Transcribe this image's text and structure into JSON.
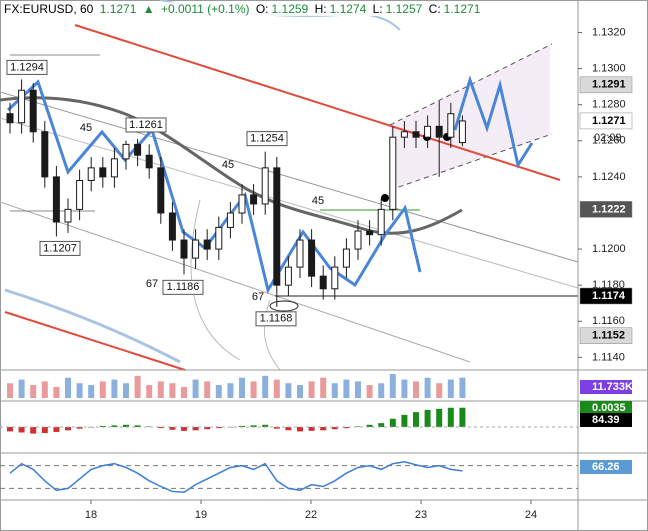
{
  "chart_data": {
    "type": "candlestick",
    "title": "FX:EURUSD, 60",
    "header": {
      "last": "1.1271",
      "arrow": "▲",
      "change": "+0.0011 (+0.1%)",
      "o_label": "O:",
      "o": "1.1259",
      "h_label": "H:",
      "h": "1.1274",
      "l_label": "L:",
      "l": "1.1257",
      "c_label": "C:",
      "c": "1.1271"
    },
    "open": [
      1.1275,
      1.127,
      1.1288,
      1.1265,
      1.124,
      1.1215,
      1.1222,
      1.1238,
      1.1245,
      1.124,
      1.125,
      1.1258,
      1.1252,
      1.1245,
      1.122,
      1.1205,
      1.1195,
      1.1205,
      1.12,
      1.1212,
      1.122,
      1.123,
      1.1225,
      1.1245,
      1.118,
      1.119,
      1.1205,
      1.1185,
      1.1178,
      1.119,
      1.12,
      1.121,
      1.1208,
      1.1222,
      1.1262,
      1.1265,
      1.1262,
      1.1268,
      1.1262,
      1.1259
    ],
    "high": [
      1.1281,
      1.1294,
      1.1292,
      1.1271,
      1.1246,
      1.1228,
      1.1244,
      1.1251,
      1.1251,
      1.1256,
      1.126,
      1.1261,
      1.1258,
      1.1251,
      1.1226,
      1.1211,
      1.1211,
      1.1211,
      1.1218,
      1.1226,
      1.1236,
      1.1236,
      1.1254,
      1.1251,
      1.1196,
      1.1211,
      1.1211,
      1.1191,
      1.1196,
      1.1206,
      1.1216,
      1.1216,
      1.1228,
      1.1268,
      1.1271,
      1.1271,
      1.1274,
      1.1282,
      1.1281,
      1.1274
    ],
    "low": [
      1.1264,
      1.1264,
      1.1259,
      1.1234,
      1.1207,
      1.1209,
      1.1216,
      1.1232,
      1.1234,
      1.1234,
      1.1244,
      1.1246,
      1.1239,
      1.1214,
      1.1199,
      1.1186,
      1.1189,
      1.1194,
      1.1194,
      1.1206,
      1.1214,
      1.1219,
      1.1219,
      1.1168,
      1.1174,
      1.1184,
      1.1179,
      1.1172,
      1.1172,
      1.1184,
      1.1194,
      1.1202,
      1.1202,
      1.1216,
      1.1256,
      1.1256,
      1.1256,
      1.124,
      1.1256,
      1.1257
    ],
    "close": [
      1.127,
      1.1288,
      1.1265,
      1.124,
      1.1215,
      1.1222,
      1.1238,
      1.1245,
      1.124,
      1.125,
      1.1258,
      1.1252,
      1.1245,
      1.122,
      1.1205,
      1.1195,
      1.1205,
      1.12,
      1.1212,
      1.122,
      1.123,
      1.1225,
      1.1245,
      1.118,
      1.119,
      1.1205,
      1.1185,
      1.1178,
      1.119,
      1.12,
      1.121,
      1.1208,
      1.1222,
      1.1262,
      1.1265,
      1.1262,
      1.1268,
      1.1262,
      1.1275,
      1.1271
    ],
    "up_color": "#ffffff",
    "down_color": "#1a1a1a",
    "ylim": [
      1.1133,
      1.1338
    ],
    "yticks": [
      {
        "value": 1.132,
        "label": "1.1320"
      },
      {
        "value": 1.13,
        "label": "1.1300"
      },
      {
        "value": 1.128,
        "label": "1.1280"
      },
      {
        "value": 1.126,
        "label": "1.1260"
      },
      {
        "value": 1.124,
        "label": "1.1240"
      },
      {
        "value": 1.12,
        "label": "1.1200"
      },
      {
        "value": 1.118,
        "label": "1.1180"
      },
      {
        "value": 1.116,
        "label": "1.1160"
      },
      {
        "value": 1.114,
        "label": "1.1140"
      }
    ],
    "xticks": [
      "18",
      "19",
      "22",
      "23",
      "24"
    ],
    "price_labels": [
      {
        "value": 1.1291,
        "bg": "#d9d9d9",
        "fg": "#000000"
      },
      {
        "value": 1.1271,
        "bg": "#ffffff",
        "fg": "#000000"
      },
      {
        "value": 1.1222,
        "bg": "#555555",
        "fg": "#ffffff"
      },
      {
        "value": 1.1174,
        "bg": "#000000",
        "fg": "#ffffff"
      },
      {
        "value": 1.1152,
        "bg": "#d9d9d9",
        "fg": "#000000"
      }
    ],
    "countdown": "02:09",
    "pivots": [
      1.1294,
      1.1261,
      1.1254,
      1.1207,
      1.1186,
      1.1168
    ],
    "fan_labels": [
      45,
      45,
      45,
      67,
      67
    ],
    "volume": {
      "up_color": "#5b8fd0",
      "down_color": "#e07070",
      "values": [
        8,
        10,
        7,
        9,
        6,
        11,
        8,
        7,
        9,
        10,
        8,
        12,
        7,
        9,
        8,
        6,
        10,
        9,
        7,
        8,
        11,
        9,
        12,
        10,
        8,
        7,
        9,
        11,
        8,
        10,
        9,
        7,
        8,
        13,
        10,
        9,
        11,
        8,
        10,
        11
      ]
    },
    "macd": {
      "up_color": "#1a8a1a",
      "down_color": "#d03030",
      "values": [
        -0.0008,
        -0.001,
        -0.0012,
        -0.0011,
        -0.0009,
        -0.0006,
        -0.0003,
        -0.0001,
        0.0002,
        0.0003,
        0.0004,
        0.0003,
        0.0001,
        -0.0002,
        -0.0005,
        -0.0007,
        -0.0006,
        -0.0004,
        -0.0002,
        0,
        0.0002,
        0.0003,
        0.0004,
        -0.0003,
        -0.0006,
        -0.0008,
        -0.0007,
        -0.0006,
        -0.0004,
        -0.0002,
        0.0001,
        0.0004,
        0.0007,
        0.0015,
        0.0022,
        0.0027,
        0.0031,
        0.0033,
        0.0035,
        0.0035
      ]
    },
    "stochastic": {
      "color": "#3b7dd8",
      "levels": [
        80,
        20
      ],
      "values": [
        60,
        85,
        70,
        40,
        15,
        20,
        45,
        70,
        80,
        85,
        75,
        60,
        40,
        25,
        12,
        10,
        30,
        45,
        60,
        75,
        80,
        70,
        85,
        40,
        20,
        15,
        30,
        25,
        40,
        60,
        75,
        80,
        70,
        85,
        90,
        82,
        75,
        80,
        70,
        66.26
      ]
    },
    "pane_labels": [
      {
        "text": "11.733K",
        "bg": "#7b3fe4"
      },
      {
        "text": "0.0035",
        "bg": "#1a8a1a"
      },
      {
        "text": "84.39",
        "bg": "#000000"
      },
      {
        "text": "66.26",
        "bg": "#5b9bd5"
      }
    ]
  }
}
